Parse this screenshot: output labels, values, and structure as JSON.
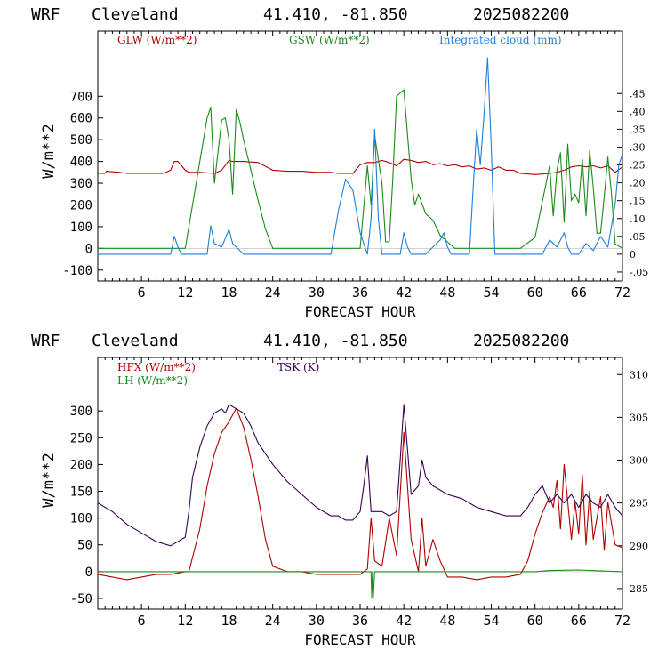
{
  "colors": {
    "glw": "#b00000",
    "gsw": "#1a8a1a",
    "cloud": "#1e7fd8",
    "hfx": "#b00000",
    "lh": "#1a8a1a",
    "tsk": "#3a0050",
    "axis": "#000000"
  },
  "chart_data": [
    {
      "type": "line",
      "title": "WRF   Cleveland      41.410, -81.850  2025082200",
      "title_parts": {
        "model": "WRF",
        "location": "Cleveland",
        "coords": "41.410, -81.850",
        "run": "2025082200"
      },
      "xlabel": "FORECAST HOUR",
      "ylabel": "W/m**2",
      "xlim": [
        0,
        72
      ],
      "ylim": [
        -150,
        1000
      ],
      "xticks": [
        6,
        12,
        18,
        24,
        30,
        36,
        42,
        48,
        54,
        60,
        66,
        72
      ],
      "yticks": [
        -100,
        0,
        100,
        200,
        300,
        400,
        500,
        600,
        700
      ],
      "y2lim": [
        -0.075,
        0.625
      ],
      "y2ticks": [
        -0.05,
        0,
        0.05,
        0.1,
        0.15,
        0.2,
        0.25,
        0.3,
        0.35,
        0.4,
        0.45
      ],
      "y2ticklabels": [
        "-.05",
        "0",
        ".05",
        ".10",
        ".15",
        ".20",
        ".25",
        ".30",
        ".35",
        ".40",
        ".45"
      ],
      "legend": [
        "GLW (W/m**2)",
        "GSW (W/m**2)",
        "Integrated cloud (mm)"
      ],
      "series": [
        {
          "name": "GLW (W/m**2)",
          "axis": "left",
          "x": [
            0,
            1,
            1.2,
            3,
            4,
            5,
            6,
            7,
            8,
            9,
            10,
            10.5,
            11,
            12,
            12.5,
            14,
            16,
            17,
            18,
            18.5,
            20,
            22,
            24,
            26,
            28,
            30,
            32,
            33,
            35,
            36,
            37,
            38,
            39,
            40,
            41,
            42,
            43,
            44,
            45,
            46,
            47,
            48,
            49,
            50,
            51,
            52,
            53,
            54,
            55,
            56,
            57,
            58,
            60,
            62,
            63,
            64,
            65,
            66,
            67,
            68,
            69,
            70,
            71,
            72
          ],
          "y": [
            345,
            345,
            355,
            350,
            345,
            345,
            345,
            345,
            345,
            345,
            360,
            400,
            400,
            360,
            350,
            350,
            345,
            360,
            405,
            400,
            400,
            395,
            360,
            355,
            355,
            350,
            350,
            345,
            345,
            385,
            395,
            395,
            405,
            395,
            380,
            410,
            405,
            395,
            400,
            385,
            390,
            380,
            385,
            375,
            380,
            365,
            370,
            360,
            375,
            360,
            360,
            345,
            340,
            345,
            350,
            360,
            375,
            380,
            375,
            380,
            370,
            380,
            350,
            375
          ]
        },
        {
          "name": "GSW (W/m**2)",
          "axis": "left",
          "x": [
            0,
            11,
            12,
            13,
            14,
            15,
            15.5,
            16,
            17,
            17.5,
            18,
            18.5,
            19,
            19.5,
            20,
            21,
            22,
            23,
            24,
            36,
            37,
            37.5,
            38,
            39,
            39.5,
            40,
            40.5,
            41,
            42,
            43,
            43.5,
            44,
            45,
            46,
            47,
            48,
            49,
            54,
            58,
            60,
            62,
            62.5,
            63,
            63.5,
            64,
            64.5,
            65,
            65.5,
            66,
            66.5,
            67,
            67.5,
            68,
            68.5,
            69,
            69.5,
            70,
            70.5,
            71,
            72
          ],
          "y": [
            0,
            0,
            0,
            200,
            400,
            600,
            650,
            300,
            590,
            600,
            500,
            250,
            640,
            580,
            500,
            360,
            220,
            90,
            0,
            0,
            380,
            200,
            520,
            300,
            30,
            30,
            330,
            700,
            730,
            320,
            200,
            250,
            160,
            130,
            60,
            30,
            0,
            0,
            0,
            50,
            380,
            150,
            360,
            440,
            120,
            480,
            220,
            250,
            210,
            410,
            150,
            450,
            280,
            70,
            70,
            240,
            420,
            250,
            20,
            0
          ]
        },
        {
          "name": "Integrated cloud (mm)",
          "axis": "right",
          "x": [
            0,
            10,
            10.5,
            11,
            11.5,
            12,
            15,
            15.5,
            16,
            17,
            18,
            18.5,
            19,
            19.5,
            20,
            20.5,
            21,
            32,
            33,
            34,
            35,
            35.5,
            36,
            37,
            37.5,
            38,
            38.5,
            39,
            40,
            41,
            41.5,
            42,
            42.5,
            43,
            45,
            46,
            47,
            47.5,
            48,
            48.5,
            49,
            50,
            51,
            51.5,
            52,
            52.5,
            53,
            53.5,
            54,
            54.5,
            55,
            55.5,
            56,
            61,
            62,
            63,
            64,
            64.5,
            65,
            66,
            67,
            68,
            69,
            70,
            71,
            71.5,
            72
          ],
          "y": [
            0,
            0,
            0.05,
            0.02,
            0,
            0,
            0,
            0.08,
            0.03,
            0.02,
            0.07,
            0.03,
            0.02,
            0.01,
            0,
            0,
            0,
            0,
            0.12,
            0.21,
            0.18,
            0.12,
            0.06,
            0,
            0.1,
            0.35,
            0.1,
            0,
            0,
            0,
            0,
            0.06,
            0.02,
            0,
            0,
            0.02,
            0.04,
            0.06,
            0.02,
            0,
            0,
            0,
            0,
            0.18,
            0.35,
            0.25,
            0.39,
            0.55,
            0.3,
            0,
            0,
            0,
            0,
            0,
            0.04,
            0.02,
            0.06,
            0.02,
            0,
            0,
            0.03,
            0.01,
            0.05,
            0.02,
            0.14,
            0.25,
            0.28
          ]
        }
      ]
    },
    {
      "type": "line",
      "title": "WRF   Cleveland      41.410, -81.850  2025082200",
      "title_parts": {
        "model": "WRF",
        "location": "Cleveland",
        "coords": "41.410, -81.850",
        "run": "2025082200"
      },
      "xlabel": "FORECAST HOUR",
      "ylabel": "W/m**2",
      "xlim": [
        0,
        72
      ],
      "ylim": [
        -70,
        400
      ],
      "xticks": [
        6,
        12,
        18,
        24,
        30,
        36,
        42,
        48,
        54,
        60,
        66,
        72
      ],
      "yticks": [
        -50,
        0,
        50,
        100,
        150,
        200,
        250,
        300
      ],
      "y2lim": [
        282.6,
        312
      ],
      "y2ticks": [
        285,
        290,
        295,
        300,
        305,
        310
      ],
      "y2ticklabels": [
        "285",
        "290",
        "295",
        "300",
        "305",
        "310"
      ],
      "legend": [
        "HFX (W/m**2)",
        "LH  (W/m**2)",
        "TSK (K)"
      ],
      "series": [
        {
          "name": "HFX (W/m**2)",
          "axis": "left",
          "x": [
            0,
            2,
            4,
            6,
            8,
            10,
            12,
            12.5,
            14,
            15,
            16,
            17,
            18,
            19,
            20,
            21,
            22,
            23,
            24,
            26,
            28,
            30,
            32,
            36,
            37,
            37.5,
            38,
            39,
            40,
            41,
            42,
            43,
            44,
            44.5,
            45,
            46,
            47,
            48,
            50,
            52,
            54,
            56,
            58,
            59,
            60,
            61,
            62,
            62.5,
            63,
            63.5,
            64,
            65,
            65.5,
            66,
            66.5,
            67,
            67.5,
            68,
            69,
            69.5,
            70,
            71,
            72
          ],
          "y": [
            -5,
            -10,
            -15,
            -10,
            -5,
            -5,
            0,
            0,
            80,
            160,
            220,
            260,
            280,
            305,
            270,
            210,
            140,
            60,
            10,
            0,
            0,
            -5,
            -5,
            -5,
            5,
            100,
            20,
            10,
            100,
            30,
            260,
            60,
            0,
            100,
            10,
            60,
            20,
            -10,
            -10,
            -15,
            -10,
            -10,
            -5,
            20,
            70,
            110,
            140,
            120,
            170,
            80,
            200,
            60,
            130,
            70,
            180,
            50,
            150,
            60,
            140,
            40,
            130,
            50,
            45
          ]
        },
        {
          "name": "LH  (W/m**2)",
          "axis": "left",
          "x": [
            0,
            12,
            24,
            37.5,
            37.6,
            37.7,
            37.8,
            38,
            48,
            60,
            62,
            66,
            72
          ],
          "y": [
            0,
            0,
            0,
            0,
            -50,
            0,
            -50,
            0,
            0,
            0,
            2,
            3,
            0
          ]
        },
        {
          "name": "TSK (K)",
          "axis": "right",
          "x": [
            0,
            2,
            4,
            6,
            8,
            10,
            12,
            12.5,
            13,
            14,
            15,
            16,
            17,
            17.5,
            18,
            19,
            20,
            21,
            22,
            24,
            26,
            28,
            30,
            32,
            33,
            34,
            35,
            36,
            36.5,
            37,
            37.5,
            38,
            39,
            40,
            41,
            41.5,
            42,
            43,
            44,
            44.5,
            45,
            46,
            48,
            50,
            52,
            54,
            56,
            58,
            59,
            60,
            61,
            62,
            63,
            64,
            65,
            66,
            67,
            68,
            69,
            70,
            71,
            72
          ],
          "y": [
            295,
            294,
            292.5,
            291.5,
            290.5,
            290,
            291,
            294,
            298,
            301.5,
            304,
            305.5,
            306,
            305.5,
            306.5,
            306,
            305.5,
            304,
            302,
            299.5,
            297.5,
            296,
            294.5,
            293.5,
            293.5,
            293,
            293,
            294,
            297,
            300.5,
            294,
            294,
            294,
            293.5,
            294,
            300,
            306.5,
            296,
            297,
            300,
            298,
            297,
            296,
            295.5,
            294.5,
            294,
            293.5,
            293.5,
            294.5,
            296,
            297,
            295,
            296,
            295,
            296,
            294.5,
            296,
            295,
            294.5,
            296,
            294.5,
            293.5
          ]
        }
      ]
    }
  ]
}
